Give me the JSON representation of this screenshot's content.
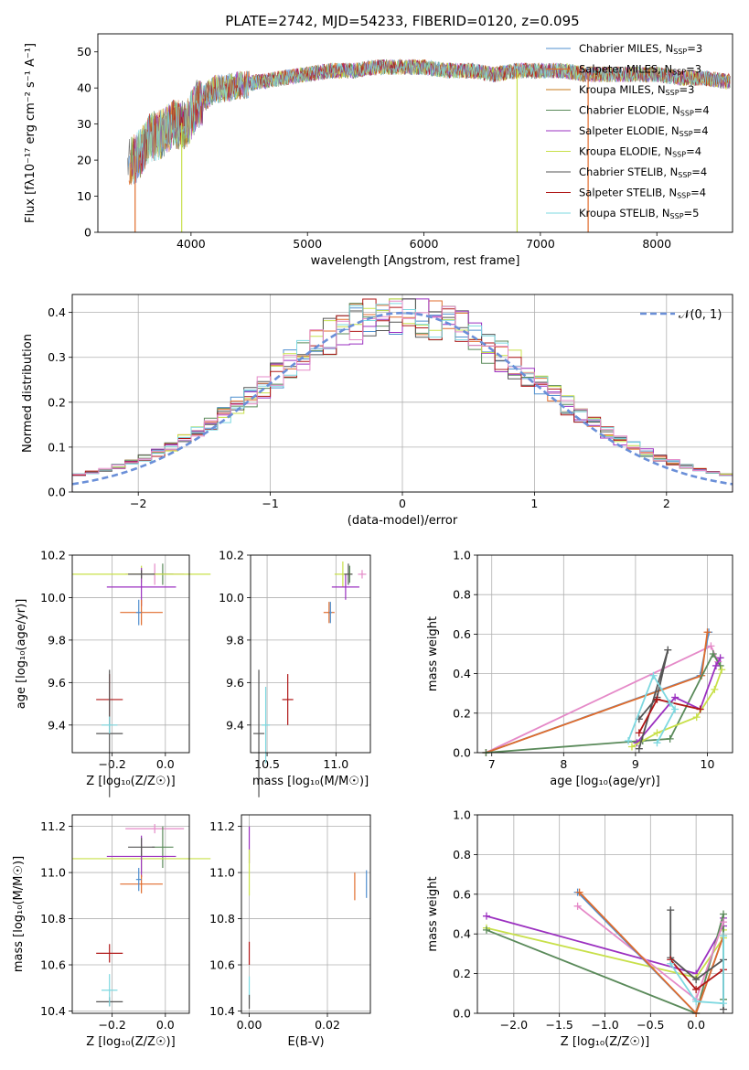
{
  "figure": {
    "title": "PLATE=2742, MJD=54233, FIBERID=0120, z=0.095"
  },
  "colors": {
    "chabrier_miles": "#4f8fcf",
    "salpeter_miles": "#e06c2c",
    "kroupa_miles": "#c77a1a",
    "chabrier_elodie": "#5a8a5a",
    "salpeter_elodie": "#9b30c0",
    "kroupa_elodie": "#c8e04a",
    "chabrier_stelib": "#555555",
    "salpeter_stelib": "#b01818",
    "kroupa_stelib": "#7dd8e0",
    "pink": "#e58ac8",
    "normal": "#6a8fd8"
  },
  "chart_data": [
    {
      "id": "spectrum",
      "type": "line",
      "title": "PLATE=2742, MJD=54233, FIBERID=0120, z=0.095",
      "xlabel": "wavelength [Angstrom, rest frame]",
      "ylabel": "Flux [fλ10⁻¹⁷ erg cm⁻² s⁻¹ A⁻¹]",
      "xlim": [
        3200,
        8650
      ],
      "ylim": [
        0,
        55
      ],
      "xticks": [
        4000,
        5000,
        6000,
        7000,
        8000
      ],
      "yticks": [
        0,
        10,
        20,
        30,
        40,
        50
      ],
      "grid": false,
      "legend_position": "top-right",
      "legend": [
        {
          "label": "Chabrier MILES, N",
          "sub": "SSP",
          "suffix": "=3",
          "color": "#4f8fcf"
        },
        {
          "label": "Salpeter MILES, N",
          "sub": "SSP",
          "suffix": "=3",
          "color": "#e06c2c"
        },
        {
          "label": "Kroupa MILES, N",
          "sub": "SSP",
          "suffix": "=3",
          "color": "#c77a1a"
        },
        {
          "label": "Chabrier ELODIE, N",
          "sub": "SSP",
          "suffix": "=4",
          "color": "#5a8a5a"
        },
        {
          "label": "Salpeter ELODIE, N",
          "sub": "SSP",
          "suffix": "=4",
          "color": "#9b30c0"
        },
        {
          "label": "Kroupa ELODIE, N",
          "sub": "SSP",
          "suffix": "=4",
          "color": "#c8e04a"
        },
        {
          "label": "Chabrier STELIB, N",
          "sub": "SSP",
          "suffix": "=4",
          "color": "#555555"
        },
        {
          "label": "Salpeter STELIB, N",
          "sub": "SSP",
          "suffix": "=4",
          "color": "#b01818"
        },
        {
          "label": "Kroupa STELIB, N",
          "sub": "SSP",
          "suffix": "=5",
          "color": "#7dd8e0"
        }
      ],
      "envelope": {
        "x": [
          3450,
          3550,
          3650,
          3750,
          3850,
          3950,
          4050,
          4200,
          4400,
          4600,
          4800,
          5000,
          5200,
          5400,
          5600,
          5800,
          6000,
          6200,
          6400,
          6600,
          6800,
          7000,
          7200,
          7400,
          7600,
          7800,
          8000,
          8200,
          8400,
          8600
        ],
        "y": [
          19,
          22,
          27,
          28,
          31,
          30,
          36,
          40,
          41,
          42,
          43,
          44,
          45,
          45,
          46,
          46,
          46,
          45,
          45,
          44,
          45,
          45,
          45,
          44,
          44,
          44,
          44,
          43,
          43,
          42
        ]
      },
      "drops": [
        {
          "x": 3520,
          "color": "#e06c2c"
        },
        {
          "x": 3920,
          "color": "#c8e04a"
        },
        {
          "x": 6800,
          "color": "#c8e04a"
        },
        {
          "x": 7410,
          "color": "#e06c2c"
        }
      ]
    },
    {
      "id": "residuals",
      "type": "bar",
      "xlabel": "(data-model)/error",
      "ylabel": "Normed distribution",
      "xlim": [
        -2.5,
        2.5
      ],
      "ylim": [
        0,
        0.44
      ],
      "xticks": [
        -2,
        -1,
        0,
        1,
        2
      ],
      "yticks": [
        0.0,
        0.1,
        0.2,
        0.3,
        0.4
      ],
      "grid": true,
      "legend_position": "top-right",
      "legend": [
        {
          "label": "𝒩(0, 1)",
          "color": "#6a8fd8",
          "style": "dashed"
        }
      ],
      "bin_width": 0.1,
      "bin_start": -2.5,
      "centers": [
        -2.45,
        -2.35,
        -2.25,
        -2.15,
        -2.05,
        -1.95,
        -1.85,
        -1.75,
        -1.65,
        -1.55,
        -1.45,
        -1.35,
        -1.25,
        -1.15,
        -1.05,
        -0.95,
        -0.85,
        -0.75,
        -0.65,
        -0.55,
        -0.45,
        -0.35,
        -0.25,
        -0.15,
        -0.05,
        0.05,
        0.15,
        0.25,
        0.35,
        0.45,
        0.55,
        0.65,
        0.75,
        0.85,
        0.95,
        1.05,
        1.15,
        1.25,
        1.35,
        1.45,
        1.55,
        1.65,
        1.75,
        1.85,
        1.95,
        2.05,
        2.15,
        2.25,
        2.35,
        2.45
      ],
      "normal": {
        "mu": 0,
        "sigma": 1
      }
    },
    {
      "id": "age_vs_Z",
      "type": "scatter",
      "xlabel": "Z [log₁₀(Z/Z☉)]",
      "ylabel": "age  [log₁₀(age/yr)]",
      "xlim": [
        -0.35,
        0.09
      ],
      "ylim": [
        9.27,
        10.2
      ],
      "xticks": [
        -0.2,
        0.0
      ],
      "xtick_labels": [
        "−0.2",
        "0.0"
      ],
      "yticks": [
        9.4,
        9.6,
        9.8,
        10.0,
        10.2
      ],
      "ytick_labels": [
        "9.4",
        "9.6",
        "9.8",
        "10.0",
        "10.2"
      ],
      "grid": true,
      "points": [
        {
          "x": -0.04,
          "y": 10.11,
          "xerr": 0.11,
          "yerr": 0.05,
          "color": "#e58ac8"
        },
        {
          "x": -0.01,
          "y": 10.11,
          "xerr": 0.04,
          "yerr": 0.05,
          "color": "#5a8a5a"
        },
        {
          "x": -0.09,
          "y": 10.11,
          "xerr": 0.26,
          "yerr": 0.04,
          "color": "#c8e04a"
        },
        {
          "x": -0.09,
          "y": 10.05,
          "xerr": 0.13,
          "yerr": 0.09,
          "color": "#9b30c0"
        },
        {
          "x": -0.09,
          "y": 10.11,
          "xerr": 0.05,
          "yerr": 0.02,
          "color": "#555555"
        },
        {
          "x": -0.09,
          "y": 9.93,
          "xerr": 0.08,
          "yerr": 0.06,
          "color": "#e06c2c"
        },
        {
          "x": -0.1,
          "y": 9.93,
          "xerr": 0.01,
          "yerr": 0.06,
          "color": "#4f8fcf"
        },
        {
          "x": -0.21,
          "y": 9.52,
          "xerr": 0.05,
          "yerr": 0.12,
          "color": "#b01818"
        },
        {
          "x": -0.21,
          "y": 9.36,
          "xerr": 0.05,
          "yerr": 0.3,
          "color": "#555555"
        },
        {
          "x": -0.21,
          "y": 9.4,
          "xerr": 0.03,
          "yerr": 0.04,
          "color": "#7dd8e0"
        }
      ]
    },
    {
      "id": "age_vs_mass",
      "type": "scatter",
      "xlabel": "mass [log₁₀(M/M☉)]",
      "ylabel": "",
      "xlim": [
        10.38,
        11.25
      ],
      "ylim": [
        9.27,
        10.2
      ],
      "xticks": [
        10.5,
        11.0
      ],
      "xtick_labels": [
        "10.5",
        "11.0"
      ],
      "yticks": [
        9.4,
        9.6,
        9.8,
        10.0,
        10.2
      ],
      "ytick_labels": [
        "9.4",
        "9.6",
        "9.8",
        "10.0",
        "10.2"
      ],
      "grid": true,
      "points": [
        {
          "x": 11.19,
          "y": 10.11,
          "xerr": 0.03,
          "yerr": 0.02,
          "color": "#e58ac8"
        },
        {
          "x": 11.1,
          "y": 10.11,
          "xerr": 0.02,
          "yerr": 0.04,
          "color": "#5a8a5a"
        },
        {
          "x": 11.05,
          "y": 10.11,
          "xerr": 0.06,
          "yerr": 0.06,
          "color": "#c8e04a"
        },
        {
          "x": 11.07,
          "y": 10.05,
          "xerr": 0.1,
          "yerr": 0.06,
          "color": "#9b30c0"
        },
        {
          "x": 11.09,
          "y": 10.11,
          "xerr": 0.03,
          "yerr": 0.05,
          "color": "#555555"
        },
        {
          "x": 10.95,
          "y": 9.93,
          "xerr": 0.04,
          "yerr": 0.05,
          "color": "#e06c2c"
        },
        {
          "x": 10.96,
          "y": 9.93,
          "xerr": 0.01,
          "yerr": 0.05,
          "color": "#4f8fcf"
        },
        {
          "x": 10.65,
          "y": 9.52,
          "xerr": 0.04,
          "yerr": 0.12,
          "color": "#b01818"
        },
        {
          "x": 10.44,
          "y": 9.36,
          "xerr": 0.04,
          "yerr": 0.3,
          "color": "#555555"
        },
        {
          "x": 10.49,
          "y": 9.4,
          "xerr": 0.03,
          "yerr": 0.18,
          "color": "#7dd8e0"
        }
      ]
    },
    {
      "id": "massweight_vs_age",
      "type": "line",
      "xlabel": "age  [log₁₀(age/yr)]",
      "ylabel": "mass weight",
      "xlim": [
        6.8,
        10.35
      ],
      "ylim": [
        0,
        1.0
      ],
      "xticks": [
        7,
        8,
        9,
        10
      ],
      "xtick_labels": [
        "7",
        "8",
        "9",
        "10"
      ],
      "yticks": [
        0.0,
        0.2,
        0.4,
        0.6,
        0.8,
        1.0
      ],
      "ytick_labels": [
        "0.0",
        "0.2",
        "0.4",
        "0.6",
        "0.8",
        "1.0"
      ],
      "grid": true,
      "series": [
        {
          "color": "#e58ac8",
          "x": [
            6.92,
            10.05,
            10.15
          ],
          "y": [
            0.0,
            0.54,
            0.46
          ]
        },
        {
          "color": "#4f8fcf",
          "x": [
            6.92,
            9.9,
            10.02
          ],
          "y": [
            0.0,
            0.39,
            0.61
          ]
        },
        {
          "color": "#e06c2c",
          "x": [
            6.92,
            9.92,
            10.0
          ],
          "y": [
            0.0,
            0.39,
            0.61
          ]
        },
        {
          "color": "#5a8a5a",
          "x": [
            6.92,
            9.1,
            9.48,
            10.08,
            10.18
          ],
          "y": [
            0.0,
            0.06,
            0.07,
            0.5,
            0.44
          ]
        },
        {
          "color": "#9b30c0",
          "x": [
            9.02,
            9.55,
            9.9,
            10.12,
            10.18
          ],
          "y": [
            0.05,
            0.28,
            0.22,
            0.44,
            0.48
          ]
        },
        {
          "color": "#c8e04a",
          "x": [
            8.95,
            9.3,
            9.85,
            10.1,
            10.2
          ],
          "y": [
            0.03,
            0.1,
            0.18,
            0.32,
            0.42
          ]
        },
        {
          "color": "#555555",
          "x": [
            9.05,
            9.3,
            9.45,
            9.05
          ],
          "y": [
            0.17,
            0.28,
            0.52,
            0.02
          ]
        },
        {
          "color": "#b01818",
          "x": [
            9.05,
            9.3,
            9.9
          ],
          "y": [
            0.1,
            0.27,
            0.22
          ]
        },
        {
          "color": "#7dd8e0",
          "x": [
            8.9,
            9.25,
            9.48,
            9.55,
            9.3
          ],
          "y": [
            0.06,
            0.39,
            0.25,
            0.22,
            0.05
          ]
        }
      ]
    },
    {
      "id": "mass_vs_Z",
      "type": "scatter",
      "xlabel": "Z [log₁₀(Z/Z☉)]",
      "ylabel": "mass [log₁₀(M/M☉)]",
      "xlim": [
        -0.35,
        0.09
      ],
      "ylim": [
        10.39,
        11.25
      ],
      "xticks": [
        -0.2,
        0.0
      ],
      "xtick_labels": [
        "−0.2",
        "0.0"
      ],
      "yticks": [
        10.4,
        10.6,
        10.8,
        11.0,
        11.2
      ],
      "ytick_labels": [
        "10.4",
        "10.6",
        "10.8",
        "11.0",
        "11.2"
      ],
      "grid": true,
      "points": [
        {
          "x": -0.04,
          "y": 11.19,
          "xerr": 0.11,
          "yerr": 0.02,
          "color": "#e58ac8"
        },
        {
          "x": -0.01,
          "y": 11.11,
          "xerr": 0.04,
          "yerr": 0.09,
          "color": "#5a8a5a"
        },
        {
          "x": -0.09,
          "y": 11.06,
          "xerr": 0.26,
          "yerr": 0.06,
          "color": "#c8e04a"
        },
        {
          "x": -0.09,
          "y": 11.07,
          "xerr": 0.13,
          "yerr": 0.09,
          "color": "#9b30c0"
        },
        {
          "x": -0.09,
          "y": 11.11,
          "xerr": 0.05,
          "yerr": 0.04,
          "color": "#555555"
        },
        {
          "x": -0.09,
          "y": 10.95,
          "xerr": 0.08,
          "yerr": 0.04,
          "color": "#e06c2c"
        },
        {
          "x": -0.1,
          "y": 10.97,
          "xerr": 0.01,
          "yerr": 0.05,
          "color": "#4f8fcf"
        },
        {
          "x": -0.21,
          "y": 10.65,
          "xerr": 0.05,
          "yerr": 0.04,
          "color": "#b01818"
        },
        {
          "x": -0.21,
          "y": 10.44,
          "xerr": 0.05,
          "yerr": 0.02,
          "color": "#555555"
        },
        {
          "x": -0.21,
          "y": 10.49,
          "xerr": 0.03,
          "yerr": 0.07,
          "color": "#7dd8e0"
        }
      ]
    },
    {
      "id": "mass_vs_ebv",
      "type": "scatter",
      "xlabel": "E(B-V)",
      "ylabel": "",
      "xlim": [
        -0.002,
        0.031
      ],
      "ylim": [
        10.39,
        11.25
      ],
      "xticks": [
        0.0,
        0.02
      ],
      "xtick_labels": [
        "0.00",
        "0.02"
      ],
      "yticks": [
        10.4,
        10.6,
        10.8,
        11.0,
        11.2
      ],
      "ytick_labels": [
        "10.4",
        "10.6",
        "10.8",
        "11.0",
        "11.2"
      ],
      "grid": true,
      "points": [
        {
          "x": 0.0,
          "y": 11.12,
          "xerr": 0,
          "yerr": 0.08,
          "color": "#9b30c0"
        },
        {
          "x": 0.0,
          "y": 11.0,
          "xerr": 0,
          "yerr": 0.1,
          "color": "#c8e04a"
        },
        {
          "x": 0.0,
          "y": 10.65,
          "xerr": 0,
          "yerr": 0.05,
          "color": "#b01818"
        },
        {
          "x": 0.0,
          "y": 10.5,
          "xerr": 0,
          "yerr": 0.05,
          "color": "#7dd8e0"
        },
        {
          "x": 0.0,
          "y": 10.44,
          "xerr": 0,
          "yerr": 0.03,
          "color": "#555555"
        },
        {
          "x": 0.027,
          "y": 10.94,
          "xerr": 0,
          "yerr": 0.06,
          "color": "#e06c2c"
        },
        {
          "x": 0.03,
          "y": 10.95,
          "xerr": 0,
          "yerr": 0.06,
          "color": "#4f8fcf"
        }
      ]
    },
    {
      "id": "massweight_vs_Z",
      "type": "line",
      "xlabel": "Z [log₁₀(Z/Z☉)]",
      "ylabel": "mass weight",
      "xlim": [
        -2.4,
        0.4
      ],
      "ylim": [
        0,
        1.0
      ],
      "xticks": [
        -2.0,
        -1.5,
        -1.0,
        -0.5,
        0.0
      ],
      "xtick_labels": [
        "−2.0",
        "−1.5",
        "−1.0",
        "−0.5",
        "0.0"
      ],
      "yticks": [
        0.0,
        0.2,
        0.4,
        0.6,
        0.8,
        1.0
      ],
      "ytick_labels": [
        "0.0",
        "0.2",
        "0.4",
        "0.6",
        "0.8",
        "1.0"
      ],
      "grid": true,
      "series": [
        {
          "color": "#9b30c0",
          "x": [
            -2.3,
            0.0,
            0.3,
            0.3
          ],
          "y": [
            0.49,
            0.2,
            0.44,
            0.48
          ]
        },
        {
          "color": "#c8e04a",
          "x": [
            -2.3,
            0.0,
            0.3,
            0.3
          ],
          "y": [
            0.43,
            0.18,
            0.38,
            0.42
          ]
        },
        {
          "color": "#5a8a5a",
          "x": [
            -2.3,
            0.0,
            0.3,
            0.3
          ],
          "y": [
            0.42,
            0.0,
            0.5,
            0.07
          ]
        },
        {
          "color": "#e58ac8",
          "x": [
            -1.3,
            0.0,
            0.3
          ],
          "y": [
            0.54,
            0.07,
            0.46
          ]
        },
        {
          "color": "#4f8fcf",
          "x": [
            -1.3,
            0.0,
            0.3
          ],
          "y": [
            0.61,
            0.0,
            0.39
          ]
        },
        {
          "color": "#e06c2c",
          "x": [
            -1.28,
            0.0,
            0.3
          ],
          "y": [
            0.61,
            0.0,
            0.39
          ]
        },
        {
          "color": "#555555",
          "x": [
            -0.28,
            -0.28,
            0.0,
            0.3,
            0.3
          ],
          "y": [
            0.52,
            0.28,
            0.17,
            0.27,
            0.02
          ]
        },
        {
          "color": "#b01818",
          "x": [
            -0.28,
            0.0,
            0.3
          ],
          "y": [
            0.27,
            0.12,
            0.22
          ]
        },
        {
          "color": "#7dd8e0",
          "x": [
            -0.28,
            0.0,
            0.3,
            0.3
          ],
          "y": [
            0.25,
            0.06,
            0.05,
            0.39
          ]
        }
      ]
    }
  ]
}
